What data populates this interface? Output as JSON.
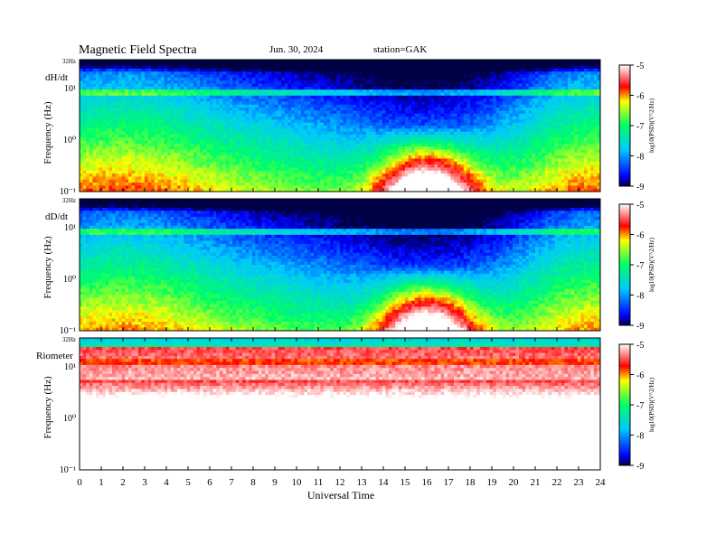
{
  "header": {
    "title": "Magnetic  Field  Spectra",
    "date": "Jun. 30, 2024",
    "station": "station=GAK"
  },
  "chart_data": {
    "type": "heatmap",
    "xlabel": "Universal Time",
    "x_ticks": [
      "0",
      "1",
      "2",
      "3",
      "4",
      "5",
      "6",
      "7",
      "8",
      "9",
      "10",
      "11",
      "12",
      "13",
      "14",
      "15",
      "16",
      "17",
      "18",
      "19",
      "20",
      "21",
      "22",
      "23",
      "24"
    ],
    "xlim": [
      0,
      24
    ],
    "yscale": "log",
    "colorbar": {
      "label": "log10(PSD)(V^2/Hz)",
      "ticks": [
        "-5",
        "-6",
        "-7",
        "-8",
        "-9"
      ],
      "range": [
        -9,
        -5
      ],
      "colors": [
        "#000044",
        "#0000ff",
        "#00c8ff",
        "#00ff66",
        "#ffff00",
        "#ff0000",
        "#ffffff"
      ]
    },
    "panels": [
      {
        "name": "dH/dt",
        "ylabel": "Frequency  (Hz)",
        "y_ticks": [
          "10⁻¹",
          "10⁰",
          "10¹",
          "32Hz"
        ],
        "ylim_hz": [
          0.1,
          32
        ]
      },
      {
        "name": "dD/dt",
        "ylabel": "Frequency  (Hz)",
        "y_ticks": [
          "10⁻¹",
          "10⁰",
          "10¹",
          "32Hz"
        ],
        "ylim_hz": [
          0.1,
          32
        ]
      },
      {
        "name": "Riometer",
        "ylabel": "Frequency  (Hz)",
        "y_ticks": [
          "10⁻¹",
          "10⁰",
          "10¹",
          "32Hz"
        ],
        "ylim_hz": [
          0.1,
          32
        ]
      }
    ]
  }
}
